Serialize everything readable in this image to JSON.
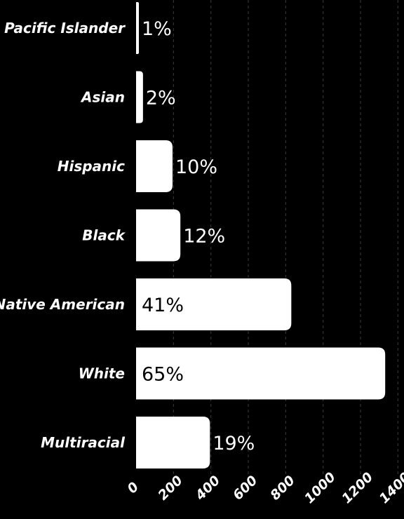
{
  "chart_data": {
    "type": "bar",
    "orientation": "horizontal",
    "title": "",
    "xlabel": "",
    "ylabel": "",
    "categories": [
      "Pacific Islander",
      "Asian",
      "Hispanic",
      "Black",
      "Native American",
      "White",
      "Multiracial"
    ],
    "values": [
      14,
      37,
      195,
      237,
      830,
      1332,
      395
    ],
    "data_labels": [
      "1%",
      "2%",
      "10%",
      "12%",
      "41%",
      "65%",
      "19%"
    ],
    "x_ticks": [
      "0",
      "200",
      "400",
      "600",
      "800",
      "1000",
      "1200",
      "1400"
    ],
    "xlim": [
      0,
      1400
    ],
    "grid": true,
    "legend": "none",
    "colors": {
      "background": "#000000",
      "bar": "#ffffff",
      "text": "#ffffff",
      "grid": "#3a3a3a"
    }
  }
}
